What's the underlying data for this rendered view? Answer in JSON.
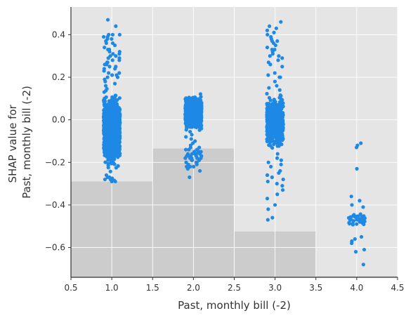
{
  "chart_data": {
    "type": "scatter",
    "title": "",
    "xlabel": "Past, monthly bill (-2)",
    "ylabel_lines": [
      "SHAP value for",
      "Past, monthly bill (-2)"
    ],
    "xlim": [
      0.5,
      4.5
    ],
    "ylim": [
      -0.74,
      0.53
    ],
    "x_ticks": [
      0.5,
      1.0,
      1.5,
      2.0,
      2.5,
      3.0,
      3.5,
      4.0,
      4.5
    ],
    "x_tick_labels": [
      "0.5",
      "1.0",
      "1.5",
      "2.0",
      "2.5",
      "3.0",
      "3.5",
      "4.0",
      "4.5"
    ],
    "y_ticks": [
      0.4,
      0.2,
      0.0,
      -0.2,
      -0.4,
      -0.6
    ],
    "y_tick_labels": [
      "0.4",
      "0.2",
      "0.0",
      "−0.2",
      "−0.4",
      "−0.6"
    ],
    "grid": true,
    "colors": {
      "points": "#1e88e5",
      "plot_bg": "#e5e5e5",
      "histogram": "#cccccc",
      "grid": "#ffffff",
      "axis": "#333333"
    },
    "histogram": [
      {
        "x_start": 0.5,
        "x_end": 1.5,
        "top": -0.29
      },
      {
        "x_start": 1.5,
        "x_end": 2.5,
        "top": -0.135
      },
      {
        "x_start": 2.5,
        "x_end": 3.5,
        "top": -0.525
      },
      {
        "x_start": 3.5,
        "x_end": 4.5,
        "top": -0.735
      }
    ],
    "series": [
      {
        "x_center": 1.0,
        "jitter": 0.1,
        "dense_range": [
          -0.25,
          0.15
        ],
        "dense_count": 1100,
        "spread_points": [
          0.47,
          0.44,
          0.4,
          0.39,
          0.38,
          0.36,
          0.35,
          0.33,
          0.32,
          0.31,
          0.3,
          0.29,
          0.28,
          0.27,
          0.26,
          0.25,
          0.24,
          0.22,
          0.21,
          0.2,
          0.19,
          0.18,
          0.17,
          0.16,
          -0.26,
          -0.27,
          -0.28,
          -0.29,
          -0.27,
          -0.28,
          0.3,
          0.29,
          0.31,
          0.28,
          0.27,
          0.26,
          0.25,
          0.24,
          0.23,
          0.22,
          0.21,
          0.2,
          0.33,
          0.34,
          0.36,
          0.38,
          0.39,
          0.4,
          0.4,
          0.37,
          0.32,
          -0.29,
          -0.285,
          -0.275
        ]
      },
      {
        "x_center": 2.0,
        "jitter": 0.1,
        "dense_range": [
          -0.06,
          0.13
        ],
        "dense_count": 900,
        "spread_points": [
          -0.13,
          -0.14,
          -0.15,
          -0.16,
          -0.17,
          -0.18,
          -0.19,
          -0.15,
          -0.16,
          -0.17,
          -0.14,
          -0.18,
          -0.2,
          -0.21,
          -0.22,
          -0.23,
          -0.24,
          -0.27,
          -0.2,
          -0.22,
          -0.16,
          -0.17,
          -0.15,
          -0.14,
          -0.18,
          -0.19,
          -0.13,
          -0.14,
          -0.15,
          -0.16,
          -0.17,
          -0.18,
          -0.19,
          -0.2,
          -0.21,
          -0.22,
          -0.23,
          -0.16,
          -0.17,
          -0.18,
          -0.07,
          -0.08,
          -0.09,
          -0.1,
          -0.11,
          -0.12
        ]
      },
      {
        "x_center": 3.0,
        "jitter": 0.1,
        "dense_range": [
          -0.15,
          0.13
        ],
        "dense_count": 650,
        "spread_points": [
          0.46,
          0.44,
          0.43,
          0.42,
          0.41,
          0.4,
          0.38,
          0.37,
          0.36,
          0.35,
          0.34,
          0.33,
          0.32,
          0.31,
          0.3,
          0.29,
          0.28,
          0.27,
          0.25,
          0.22,
          0.21,
          0.2,
          0.18,
          0.16,
          0.15,
          0.14,
          -0.16,
          -0.18,
          -0.2,
          -0.22,
          -0.24,
          -0.26,
          -0.28,
          -0.29,
          -0.3,
          -0.31,
          -0.33,
          -0.35,
          -0.37,
          -0.4,
          -0.42,
          -0.46,
          -0.47,
          0.39,
          0.37,
          0.33,
          0.3,
          0.26,
          0.2,
          -0.25,
          -0.27,
          -0.21,
          -0.19
        ]
      },
      {
        "x_center": 4.0,
        "jitter": 0.1,
        "dense_range": [
          -0.52,
          -0.42
        ],
        "dense_count": 35,
        "spread_points": [
          -0.11,
          -0.12,
          -0.13,
          -0.23,
          -0.36,
          -0.38,
          -0.4,
          -0.41,
          -0.55,
          -0.56,
          -0.57,
          -0.58,
          -0.61,
          -0.62,
          -0.68
        ]
      }
    ]
  }
}
